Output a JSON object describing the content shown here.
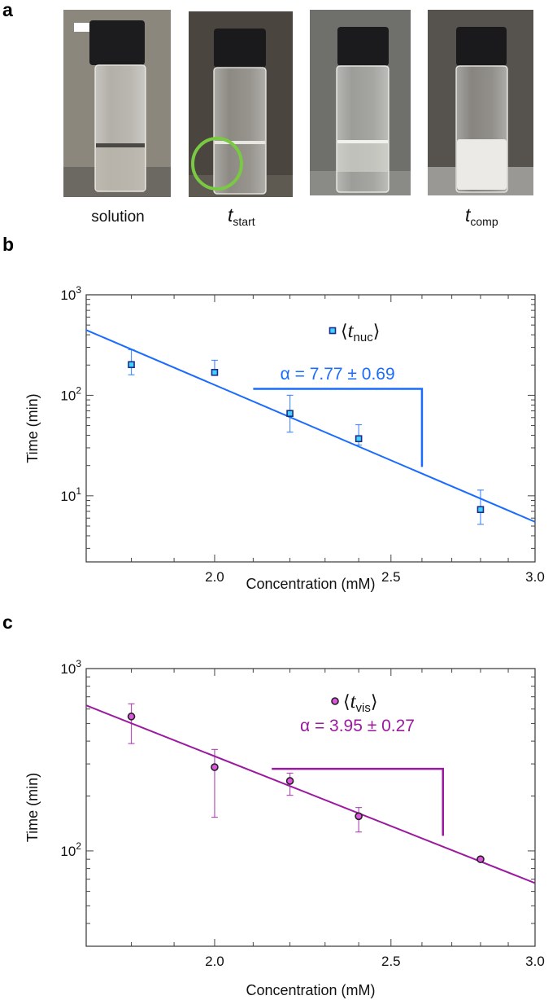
{
  "panel_a": {
    "label": "a",
    "photos": [
      {
        "caption": "solution",
        "caption_sub": ""
      },
      {
        "caption": "t",
        "caption_sub": "start"
      },
      {
        "caption": "",
        "caption_sub": ""
      },
      {
        "caption": "t",
        "caption_sub": "comp"
      }
    ],
    "highlight_color": "#7ac943"
  },
  "chart_data": [
    {
      "panel_label": "b",
      "type": "scatter",
      "xlabel": "Concentration (mM)",
      "ylabel": "Time (min)",
      "x_scale": "log",
      "y_scale": "log",
      "xlim": [
        1.7,
        3.0
      ],
      "ylim": [
        2.2,
        1000
      ],
      "x_ticks": [
        {
          "value": 2.0,
          "label": "2.0"
        },
        {
          "value": 2.5,
          "label": "2.5"
        },
        {
          "value": 3.0,
          "label": "3.0"
        }
      ],
      "y_ticks": [
        {
          "value": 1000,
          "base": "10",
          "exp": "3"
        },
        {
          "value": 100,
          "base": "10",
          "exp": "2"
        },
        {
          "value": 10,
          "base": "10",
          "exp": "1"
        }
      ],
      "grid": false,
      "legend_placement": "top-center",
      "series": [
        {
          "name": "⟨t_nuc⟩",
          "legend": {
            "open": "⟨",
            "base": "t",
            "sub": "nuc",
            "close": "⟩"
          },
          "marker": "square",
          "color": "#1a6cff",
          "marker_fill": "#3fd3ff",
          "marker_edge": "#1e2a8a",
          "x": [
            1.8,
            2.0,
            2.2,
            2.4,
            2.8
          ],
          "y": [
            202,
            169,
            66,
            37,
            7.3
          ],
          "y_err_low": [
            160,
            160,
            43,
            32,
            5.2
          ],
          "y_err_high": [
            284,
            223,
            100,
            51,
            11.4
          ]
        }
      ],
      "fit": {
        "x": [
          1.7,
          3.0
        ],
        "y": [
          446,
          5.5
        ]
      },
      "annotation": {
        "text": "α = 7.77 ± 0.69",
        "bracket_x": [
          2.1,
          2.6
        ],
        "bracket_y": [
          116,
          19.4
        ]
      }
    },
    {
      "panel_label": "c",
      "type": "scatter",
      "xlabel": "Concentration (mM)",
      "ylabel": "Time (min)",
      "x_scale": "log",
      "y_scale": "log",
      "xlim": [
        1.7,
        3.0
      ],
      "ylim": [
        30,
        1000
      ],
      "x_ticks": [
        {
          "value": 2.0,
          "label": "2.0"
        },
        {
          "value": 2.5,
          "label": "2.5"
        },
        {
          "value": 3.0,
          "label": "3.0"
        }
      ],
      "y_ticks": [
        {
          "value": 1000,
          "base": "10",
          "exp": "3"
        },
        {
          "value": 100,
          "base": "10",
          "exp": "2"
        }
      ],
      "grid": false,
      "legend_placement": "top-center",
      "series": [
        {
          "name": "⟨t_vis⟩",
          "legend": {
            "open": "⟨",
            "base": "t",
            "sub": "vis",
            "close": "⟩"
          },
          "marker": "circle",
          "color": "#9b1aa0",
          "marker_fill": "#e055e0",
          "marker_edge": "#222222",
          "x": [
            1.8,
            2.0,
            2.2,
            2.4,
            2.8
          ],
          "y": [
            546,
            288,
            242,
            155,
            90
          ],
          "y_err_low": [
            388,
            153,
            202,
            127,
            90
          ],
          "y_err_high": [
            641,
            360,
            267,
            173,
            90
          ]
        }
      ],
      "fit": {
        "x": [
          1.7,
          3.0
        ],
        "y": [
          628,
          66.6
        ]
      },
      "annotation": {
        "text": "α = 3.95 ± 0.27",
        "bracket_x": [
          2.15,
          2.67
        ],
        "bracket_y": [
          282,
          121
        ]
      }
    }
  ]
}
